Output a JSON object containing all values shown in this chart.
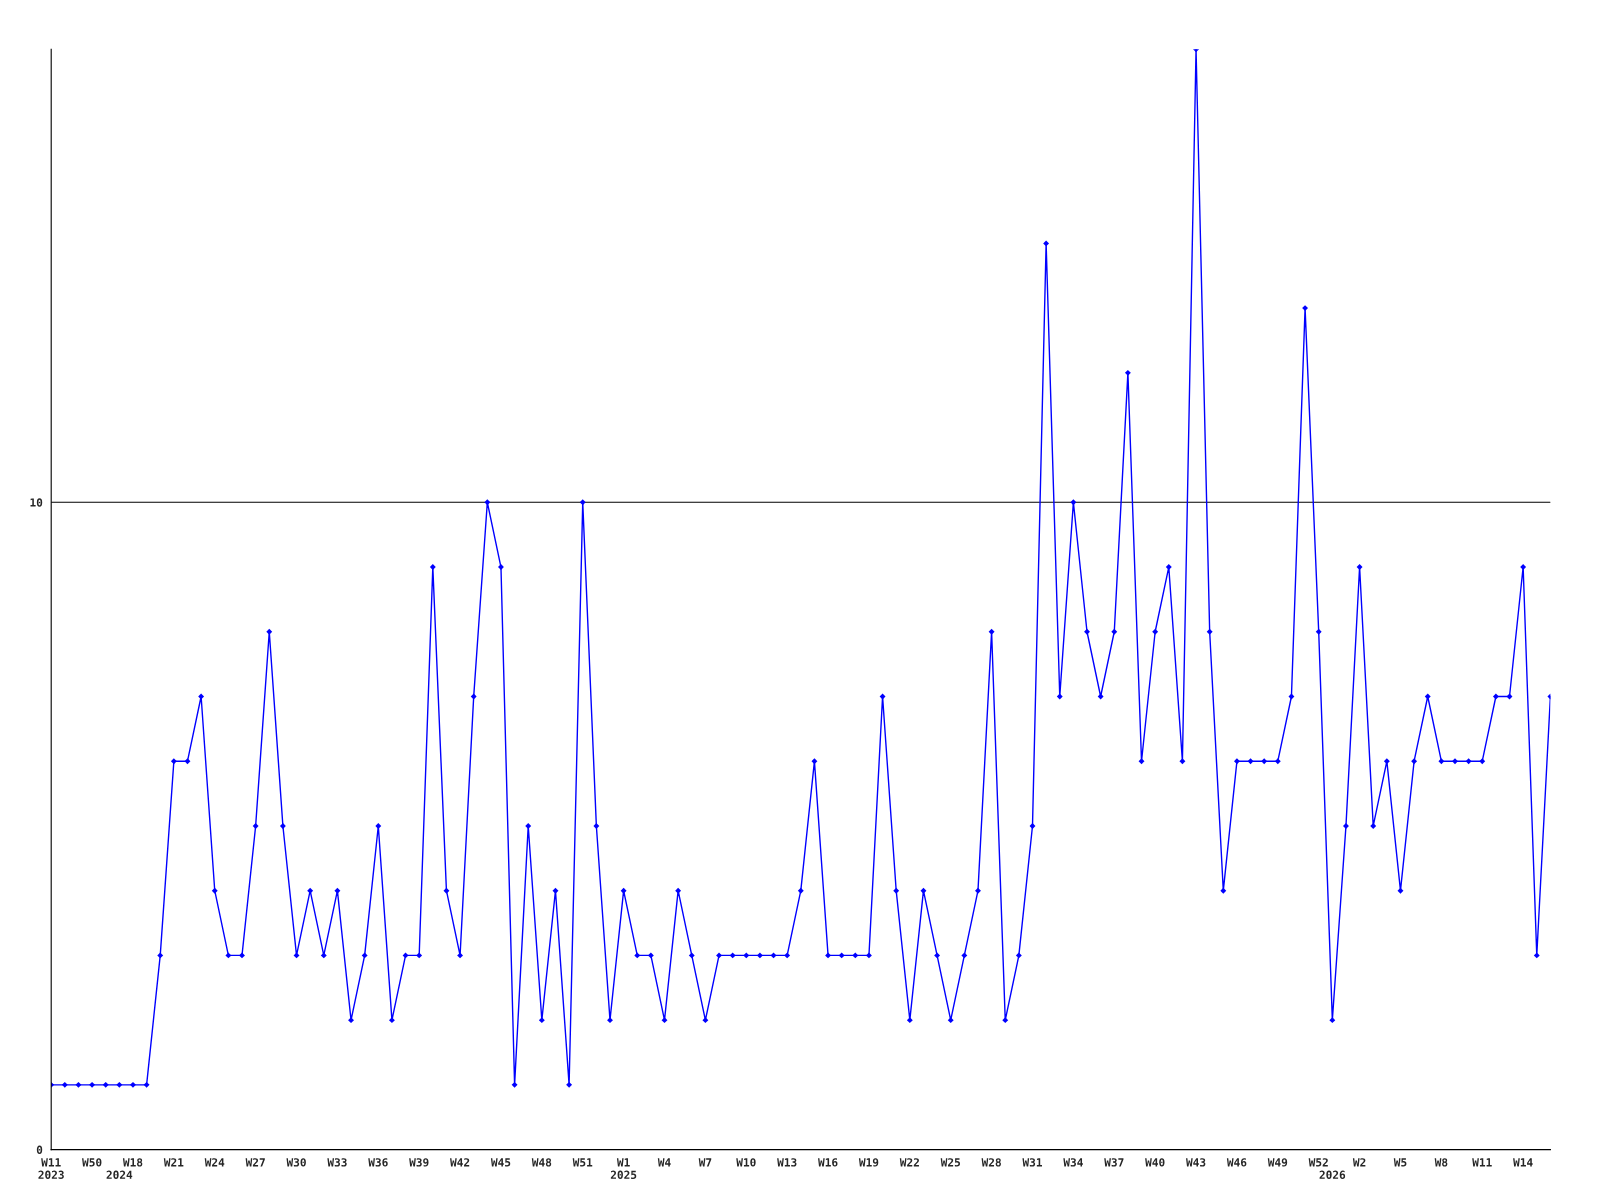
{
  "chart_data": {
    "type": "line",
    "categories": [
      "W11\n2023",
      null,
      null,
      "W50",
      null,
      "\n2024",
      "W18",
      null,
      null,
      "W21",
      null,
      null,
      "W24",
      null,
      null,
      "W27",
      null,
      null,
      "W30",
      null,
      null,
      "W33",
      null,
      null,
      "W36",
      null,
      null,
      "W39",
      null,
      null,
      "W42",
      null,
      null,
      "W45",
      null,
      null,
      "W48",
      null,
      null,
      "W51",
      null,
      null,
      "W1\n2025",
      null,
      null,
      "W4",
      null,
      null,
      "W7",
      null,
      null,
      "W10",
      null,
      null,
      "W13",
      null,
      null,
      "W16",
      null,
      null,
      "W19",
      null,
      null,
      "W22",
      null,
      null,
      "W25",
      null,
      null,
      "W28",
      null,
      null,
      "W31",
      null,
      null,
      "W34",
      null,
      null,
      "W37",
      null,
      null,
      "W40",
      null,
      null,
      "W43",
      null,
      null,
      "W46",
      null,
      null,
      "W49",
      null,
      null,
      "W52",
      "\n2026",
      null,
      "W2",
      null,
      null,
      "W5",
      null,
      null,
      "W8",
      null,
      null,
      "W11",
      null,
      null,
      "W14",
      null,
      null
    ],
    "series": [
      {
        "color": "#0000ff",
        "values": [
          1,
          1,
          1,
          1,
          1,
          1,
          1,
          1,
          3,
          6,
          6,
          7,
          4,
          3,
          3,
          5,
          8,
          5,
          3,
          4,
          3,
          4,
          2,
          3,
          5,
          2,
          3,
          3,
          9,
          4,
          3,
          7,
          10,
          9,
          1,
          5,
          2,
          4,
          1,
          10,
          5,
          2,
          4,
          3,
          3,
          2,
          4,
          3,
          2,
          3,
          3,
          3,
          3,
          3,
          3,
          4,
          6,
          3,
          3,
          3,
          3,
          7,
          4,
          2,
          4,
          3,
          2,
          3,
          4,
          8,
          2,
          3,
          5,
          14,
          7,
          10,
          8,
          7,
          8,
          12,
          6,
          8,
          9,
          6,
          17,
          8,
          4,
          6,
          6,
          6,
          6,
          7,
          13,
          8,
          2,
          5,
          9,
          5,
          6,
          4,
          6,
          7,
          6,
          6,
          6,
          6,
          7,
          7,
          9,
          3,
          7
        ]
      }
    ],
    "ylim": [
      0,
      17
    ],
    "yticks": [
      0,
      10
    ],
    "grid": "y",
    "marker": "diamond",
    "line_style": "solid"
  }
}
